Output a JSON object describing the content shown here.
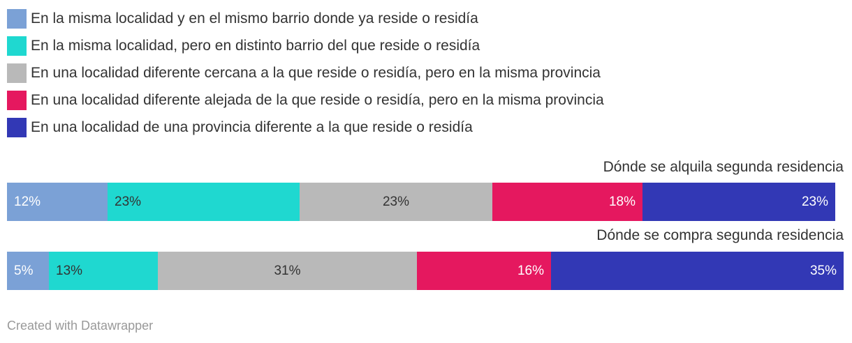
{
  "legend": [
    {
      "label": "En la misma localidad y en el mismo barrio donde ya reside o residía",
      "color": "#7ba1d6"
    },
    {
      "label": "En la misma localidad, pero en distinto barrio del que reside o residía",
      "color": "#1fd8d0"
    },
    {
      "label": "En una localidad diferente cercana a la que reside o residía, pero en la misma provincia",
      "color": "#b9b9b9"
    },
    {
      "label": "En una localidad diferente alejada de la que reside o residía, pero en la misma provincia",
      "color": "#e5185f"
    },
    {
      "label": "En una localidad de una provincia diferente a la que reside o residía",
      "color": "#3238b5"
    }
  ],
  "chart_data": {
    "type": "bar",
    "orientation": "horizontal-stacked-100",
    "rows": [
      "Dónde se alquila segunda residencia",
      "Dónde se compra segunda residencia"
    ],
    "series": [
      {
        "name": "En la misma localidad y en el mismo barrio donde ya reside o residía",
        "color": "#7ba1d6",
        "text_color": "#ffffff",
        "align": "left",
        "values": [
          12,
          5
        ],
        "labels": [
          "12%",
          "5%"
        ]
      },
      {
        "name": "En la misma localidad, pero en distinto barrio del que reside o residía",
        "color": "#1fd8d0",
        "text_color": "#333333",
        "align": "left",
        "values": [
          23,
          13
        ],
        "labels": [
          "23%",
          "13%"
        ]
      },
      {
        "name": "En una localidad diferente cercana a la que reside o residía, pero en la misma provincia",
        "color": "#b9b9b9",
        "text_color": "#333333",
        "align": "center",
        "values": [
          23,
          31
        ],
        "labels": [
          "23%",
          "31%"
        ]
      },
      {
        "name": "En una localidad diferente alejada de la que reside o residía, pero en la misma provincia",
        "color": "#e5185f",
        "text_color": "#ffffff",
        "align": "right",
        "values": [
          18,
          16
        ],
        "labels": [
          "18%",
          "16%"
        ]
      },
      {
        "name": "En una localidad de una provincia diferente a la que reside o residía",
        "color": "#3238b5",
        "text_color": "#ffffff",
        "align": "right",
        "values": [
          23,
          35
        ],
        "labels": [
          "23%",
          "35%"
        ]
      }
    ],
    "xlim": [
      0,
      100
    ],
    "grid": false,
    "legend_position": "top-left"
  },
  "footer": {
    "text": "Created with Datawrapper"
  }
}
